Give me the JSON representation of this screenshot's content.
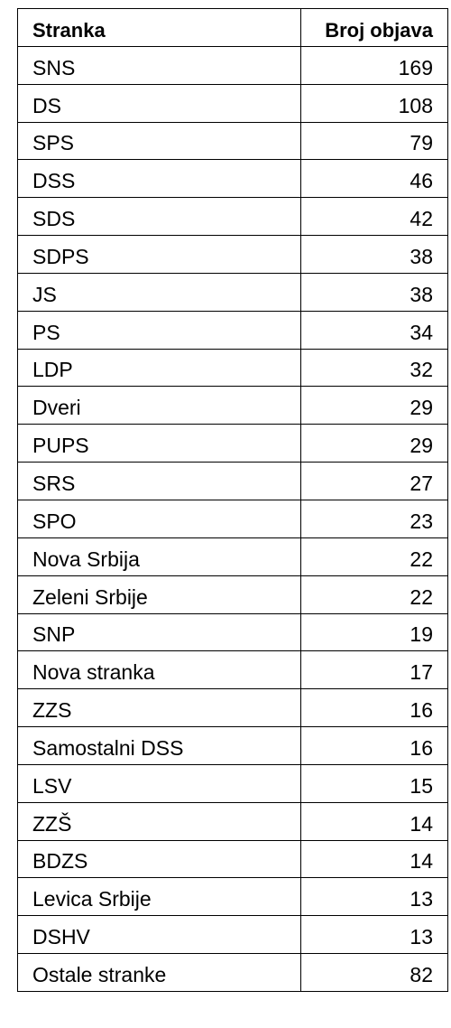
{
  "table": {
    "headers": [
      "Stranka",
      "Broj objava"
    ],
    "rows": [
      {
        "party": "SNS",
        "count": "169"
      },
      {
        "party": "DS",
        "count": "108"
      },
      {
        "party": "SPS",
        "count": "79"
      },
      {
        "party": "DSS",
        "count": "46"
      },
      {
        "party": "SDS",
        "count": "42"
      },
      {
        "party": "SDPS",
        "count": "38"
      },
      {
        "party": "JS",
        "count": "38"
      },
      {
        "party": "PS",
        "count": "34"
      },
      {
        "party": "LDP",
        "count": "32"
      },
      {
        "party": "Dveri",
        "count": "29"
      },
      {
        "party": "PUPS",
        "count": "29"
      },
      {
        "party": "SRS",
        "count": "27"
      },
      {
        "party": "SPO",
        "count": "23"
      },
      {
        "party": "Nova Srbija",
        "count": "22"
      },
      {
        "party": "Zeleni Srbije",
        "count": "22"
      },
      {
        "party": "SNP",
        "count": "19"
      },
      {
        "party": "Nova stranka",
        "count": "17"
      },
      {
        "party": "ZZS",
        "count": "16"
      },
      {
        "party": "Samostalni DSS",
        "count": "16"
      },
      {
        "party": "LSV",
        "count": "15"
      },
      {
        "party": "ZZŠ",
        "count": "14"
      },
      {
        "party": "BDZS",
        "count": "14"
      },
      {
        "party": "Levica Srbije",
        "count": "13"
      },
      {
        "party": "DSHV",
        "count": "13"
      },
      {
        "party": "Ostale stranke",
        "count": "82"
      }
    ]
  }
}
